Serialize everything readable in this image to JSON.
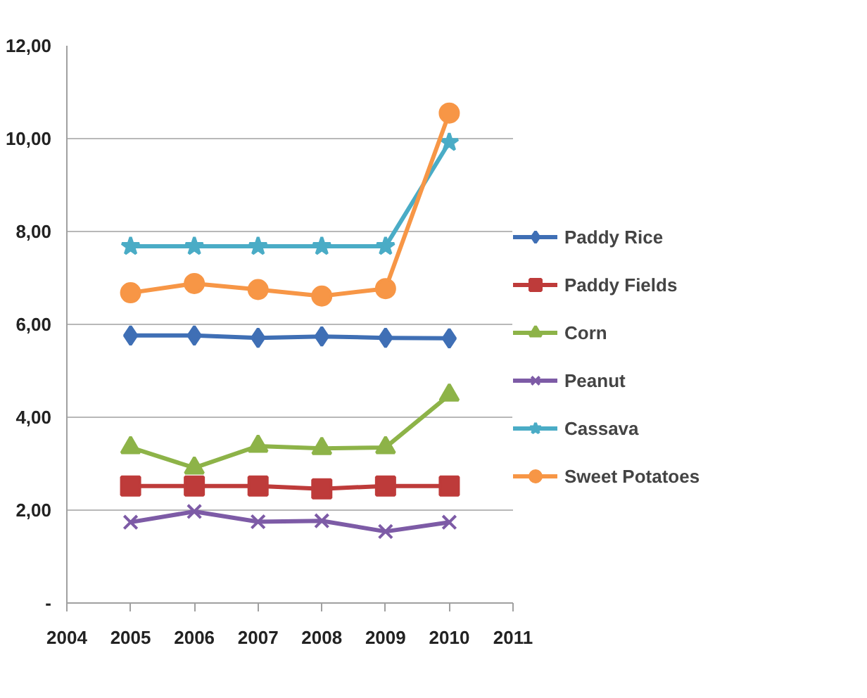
{
  "chart_data": {
    "type": "line",
    "x": [
      2005,
      2006,
      2007,
      2008,
      2009,
      2010
    ],
    "xlim": [
      2004,
      2011
    ],
    "xticks": [
      2004,
      2005,
      2006,
      2007,
      2008,
      2009,
      2010,
      2011
    ],
    "ylim": [
      0,
      12
    ],
    "yticks": [
      {
        "value": 0,
        "label": "-"
      },
      {
        "value": 2,
        "label": "2,00"
      },
      {
        "value": 4,
        "label": "4,00"
      },
      {
        "value": 6,
        "label": "6,00"
      },
      {
        "value": 8,
        "label": "8,00"
      },
      {
        "value": 10,
        "label": "10,00"
      },
      {
        "value": 12,
        "label": "12,00"
      }
    ],
    "grid": "y",
    "legend": "right",
    "series": [
      {
        "name": "Paddy Rice",
        "color": "#3f6fb5",
        "marker": "diamond",
        "values": [
          5.76,
          5.76,
          5.71,
          5.74,
          5.71,
          5.7
        ]
      },
      {
        "name": "Paddy Fields",
        "color": "#be3b3a",
        "marker": "square",
        "values": [
          2.52,
          2.52,
          2.52,
          2.46,
          2.52,
          2.52
        ]
      },
      {
        "name": "Corn",
        "color": "#8db348",
        "marker": "triangle",
        "values": [
          3.35,
          2.91,
          3.38,
          3.33,
          3.35,
          4.48
        ]
      },
      {
        "name": "Peanut",
        "color": "#7d5ba6",
        "marker": "cross",
        "values": [
          1.74,
          1.97,
          1.75,
          1.77,
          1.54,
          1.74
        ]
      },
      {
        "name": "Cassava",
        "color": "#4aacc6",
        "marker": "star",
        "values": [
          7.68,
          7.68,
          7.68,
          7.68,
          7.68,
          9.92
        ]
      },
      {
        "name": "Sweet Potatoes",
        "color": "#f79646",
        "marker": "circle",
        "values": [
          6.68,
          6.88,
          6.75,
          6.61,
          6.77,
          10.55
        ]
      }
    ]
  }
}
